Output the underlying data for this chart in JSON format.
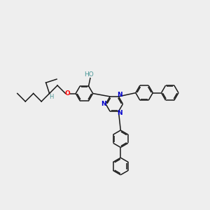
{
  "background_color": "#eeeeee",
  "bond_color": "#1a1a1a",
  "atom_colors": {
    "O": "#ff0000",
    "N": "#0000cc",
    "H_ol": "#4d9999",
    "C": "#1a1a1a"
  },
  "figsize": [
    3.0,
    3.0
  ],
  "dpi": 100,
  "lw": 1.1,
  "ring_r": 0.38,
  "scale": 1.0
}
